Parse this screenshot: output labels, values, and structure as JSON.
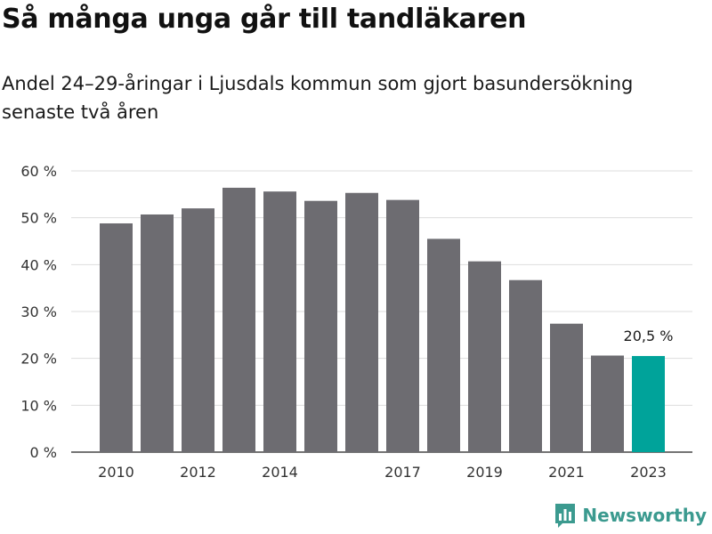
{
  "header": {
    "title": "Så många unga går till tandläkaren",
    "subtitle": "Andel 24–29-åringar i Ljusdals kommun som gjort basundersökning senaste två åren"
  },
  "brand": {
    "name": "Newsworthy",
    "color": "#3b9a8f",
    "icon": "newsworthy-logo-icon"
  },
  "chart_data": {
    "type": "bar",
    "title": "Så många unga går till tandläkaren",
    "subtitle": "Andel 24–29-åringar i Ljusdals kommun som gjort basundersökning senaste två åren",
    "categories": [
      "2010",
      "2011",
      "2012",
      "2013",
      "2014",
      "2015",
      "2016",
      "2017",
      "2018",
      "2019",
      "2020",
      "2021",
      "2022",
      "2023"
    ],
    "values": [
      48.8,
      50.7,
      52.0,
      56.4,
      55.6,
      53.6,
      55.3,
      53.8,
      45.5,
      40.7,
      36.7,
      27.4,
      20.6,
      20.5
    ],
    "ylim": [
      0,
      60
    ],
    "yticks": [
      0,
      10,
      20,
      30,
      40,
      50,
      60
    ],
    "ytick_labels": [
      "0 %",
      "10 %",
      "20 %",
      "30 %",
      "40 %",
      "50 %",
      "60 %"
    ],
    "xtick_labels": [
      "2010",
      "2012",
      "2014",
      "2017",
      "2019",
      "2021",
      "2023"
    ],
    "annotation": {
      "category": "2023",
      "label": "20,5 %"
    },
    "grid": true,
    "colors": {
      "default": "#6d6c71",
      "highlight": "#00a39a"
    },
    "highlight": "2023",
    "xlabel": "",
    "ylabel": ""
  }
}
